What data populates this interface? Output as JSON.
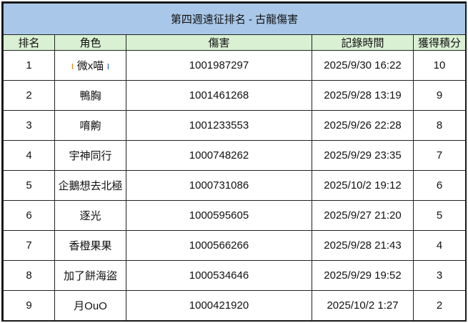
{
  "title": "第四週遠征排名 -  古龍傷害",
  "headers": [
    "排名",
    "角色",
    "傷害",
    "記錄時間",
    "獲得積分"
  ],
  "rows": [
    {
      "rank": "1",
      "name": "微x喵",
      "damage": "1001987297",
      "time": "2025/9/30 16:22",
      "points": "10"
    },
    {
      "rank": "2",
      "name": "鴨胸",
      "damage": "1001461268",
      "time": "2025/9/28 13:19",
      "points": "9"
    },
    {
      "rank": "3",
      "name": "唷齁",
      "damage": "1001233553",
      "time": "2025/9/26 22:28",
      "points": "8"
    },
    {
      "rank": "4",
      "name": "宇神同行",
      "damage": "1000748262",
      "time": "2025/9/29 23:35",
      "points": "7"
    },
    {
      "rank": "5",
      "name": "企鵝想去北極",
      "damage": "1000731086",
      "time": "2025/10/2 19:12",
      "points": "6"
    },
    {
      "rank": "6",
      "name": "逐光",
      "damage": "1000595605",
      "time": "2025/9/27 21:20",
      "points": "5"
    },
    {
      "rank": "7",
      "name": "香橙果果",
      "damage": "1000566266",
      "time": "2025/9/28 21:43",
      "points": "4"
    },
    {
      "rank": "8",
      "name": "加了餅海盜",
      "damage": "1000534646",
      "time": "2025/9/29 19:52",
      "points": "3"
    },
    {
      "rank": "9",
      "name": "月OuO",
      "damage": "1000421920",
      "time": "2025/10/2 1:27",
      "points": "2"
    }
  ],
  "colors": {
    "title_bg": "#a9c8e9",
    "header_bg": "#d9f0d3"
  }
}
